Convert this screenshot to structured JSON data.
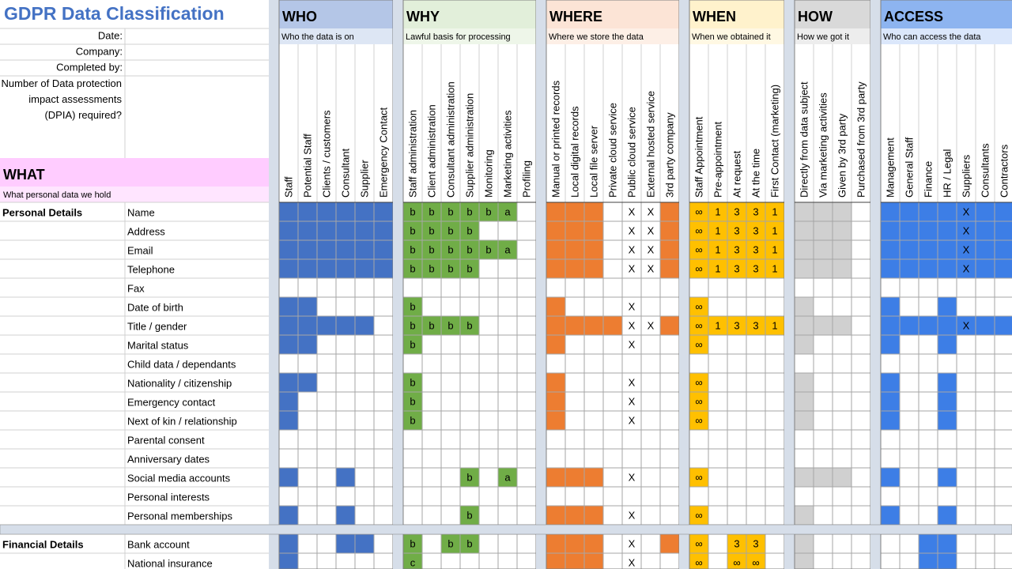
{
  "header": {
    "title": "GDPR Data Classification",
    "fields": [
      "Date:",
      "Company:",
      "Completed by:",
      "Number of Data protection impact assessments (DPIA) required?"
    ]
  },
  "what": {
    "title": "WHAT",
    "subtitle": "What personal data we hold",
    "header_color": "#ffccff",
    "subtitle_color": "#ffe5ff"
  },
  "groups": [
    {
      "name": "Personal Details",
      "items": [
        "Name",
        "Address",
        "Email",
        "Telephone",
        "Fax",
        "Date of birth",
        "Title / gender",
        "Marital status",
        "Child data / dependants",
        "Nationality / citizenship",
        "Emergency contact",
        "Next of kin / relationship",
        "Parental consent",
        "Anniversary dates",
        "Social media accounts",
        "Personal interests",
        "Personal memberships"
      ]
    },
    {
      "name": "Financial Details",
      "items": [
        "Bank account",
        "National insurance"
      ]
    }
  ],
  "sections": [
    {
      "title": "WHO",
      "subtitle": "Who the data is on",
      "header_color": "#b4c6e7",
      "subtitle_color": "#dde6f4",
      "fill": "#4472c4",
      "text_fill": false,
      "columns": [
        "Staff",
        "Potential Staff",
        "Clients / customers",
        "Consultant",
        "Supplier",
        "Emergency Contact"
      ],
      "cells": [
        [
          [
            true,
            true,
            true,
            true,
            true,
            true
          ],
          [
            true,
            true,
            true,
            true,
            true,
            true
          ],
          [
            true,
            true,
            true,
            true,
            true,
            true
          ],
          [
            true,
            true,
            true,
            true,
            true,
            true
          ],
          [
            null,
            null,
            null,
            null,
            null,
            null
          ],
          [
            true,
            true,
            null,
            null,
            null,
            null
          ],
          [
            true,
            true,
            true,
            true,
            true,
            null
          ],
          [
            true,
            true,
            null,
            null,
            null,
            null
          ],
          [
            null,
            null,
            null,
            null,
            null,
            null
          ],
          [
            true,
            true,
            null,
            null,
            null,
            null
          ],
          [
            true,
            null,
            null,
            null,
            null,
            null
          ],
          [
            true,
            null,
            null,
            null,
            null,
            null
          ],
          [
            null,
            null,
            null,
            null,
            null,
            null
          ],
          [
            null,
            null,
            null,
            null,
            null,
            null
          ],
          [
            true,
            null,
            null,
            true,
            null,
            null
          ],
          [
            null,
            null,
            null,
            null,
            null,
            null
          ],
          [
            true,
            null,
            null,
            true,
            null,
            null
          ]
        ],
        [
          [
            true,
            null,
            null,
            true,
            true,
            null
          ],
          [
            true,
            null,
            null,
            null,
            null,
            null
          ]
        ]
      ]
    },
    {
      "title": "WHY",
      "subtitle": "Lawful basis for processing",
      "header_color": "#e2efda",
      "subtitle_color": "#eef6e9",
      "fill": "#70ad47",
      "text_fill": true,
      "columns": [
        "Staff administration",
        "Client administration",
        "Consultant administration",
        "Supplier administration",
        "Monitoring",
        "Marketing activities",
        "Profiling"
      ],
      "cells": [
        [
          [
            "b",
            "b",
            "b",
            "b",
            "b",
            "a",
            null
          ],
          [
            "b",
            "b",
            "b",
            "b",
            null,
            null,
            null
          ],
          [
            "b",
            "b",
            "b",
            "b",
            "b",
            "a",
            null
          ],
          [
            "b",
            "b",
            "b",
            "b",
            null,
            null,
            null
          ],
          [
            null,
            null,
            null,
            null,
            null,
            null,
            null
          ],
          [
            "b",
            null,
            null,
            null,
            null,
            null,
            null
          ],
          [
            "b",
            "b",
            "b",
            "b",
            null,
            null,
            null
          ],
          [
            "b",
            null,
            null,
            null,
            null,
            null,
            null
          ],
          [
            null,
            null,
            null,
            null,
            null,
            null,
            null
          ],
          [
            "b",
            null,
            null,
            null,
            null,
            null,
            null
          ],
          [
            "b",
            null,
            null,
            null,
            null,
            null,
            null
          ],
          [
            "b",
            null,
            null,
            null,
            null,
            null,
            null
          ],
          [
            null,
            null,
            null,
            null,
            null,
            null,
            null
          ],
          [
            null,
            null,
            null,
            null,
            null,
            null,
            null
          ],
          [
            null,
            null,
            null,
            "b",
            null,
            "a",
            null
          ],
          [
            null,
            null,
            null,
            null,
            null,
            null,
            null
          ],
          [
            null,
            null,
            null,
            "b",
            null,
            null,
            null
          ]
        ],
        [
          [
            "b",
            null,
            "b",
            "b",
            null,
            null,
            null
          ],
          [
            "c",
            null,
            null,
            null,
            null,
            null,
            null
          ]
        ]
      ]
    },
    {
      "title": "WHERE",
      "subtitle": "Where we store the data",
      "header_color": "#fce4d6",
      "subtitle_color": "#fdefe6",
      "fill": "#ed7d31",
      "text_fill": false,
      "columns": [
        "Manual or printed records",
        "Local digital records",
        "Local file server",
        "Private cloud service",
        "Public cloud service",
        "External hosted service",
        "3rd party company"
      ],
      "cells": [
        [
          [
            true,
            true,
            true,
            null,
            "X",
            "X",
            true
          ],
          [
            true,
            true,
            true,
            null,
            "X",
            "X",
            true
          ],
          [
            true,
            true,
            true,
            null,
            "X",
            "X",
            true
          ],
          [
            true,
            true,
            true,
            null,
            "X",
            "X",
            true
          ],
          [
            null,
            null,
            null,
            null,
            null,
            null,
            null
          ],
          [
            true,
            null,
            null,
            null,
            "X",
            null,
            null
          ],
          [
            true,
            true,
            true,
            true,
            "X",
            "X",
            true
          ],
          [
            true,
            null,
            null,
            null,
            "X",
            null,
            null
          ],
          [
            null,
            null,
            null,
            null,
            null,
            null,
            null
          ],
          [
            true,
            null,
            null,
            null,
            "X",
            null,
            null
          ],
          [
            true,
            null,
            null,
            null,
            "X",
            null,
            null
          ],
          [
            true,
            null,
            null,
            null,
            "X",
            null,
            null
          ],
          [
            null,
            null,
            null,
            null,
            null,
            null,
            null
          ],
          [
            null,
            null,
            null,
            null,
            null,
            null,
            null
          ],
          [
            true,
            true,
            true,
            null,
            "X",
            null,
            null
          ],
          [
            null,
            null,
            null,
            null,
            null,
            null,
            null
          ],
          [
            true,
            true,
            true,
            null,
            "X",
            null,
            null
          ]
        ],
        [
          [
            true,
            true,
            true,
            null,
            "X",
            null,
            true
          ],
          [
            true,
            true,
            true,
            null,
            "X",
            null,
            null
          ]
        ]
      ]
    },
    {
      "title": "WHEN",
      "subtitle": "When we obtained it",
      "header_color": "#fff2cc",
      "subtitle_color": "#fff8e3",
      "fill": "#ffc000",
      "text_fill": true,
      "columns": [
        "Staff Appointment",
        "Pre-appointment",
        "At request",
        "At the time",
        "First Contact (marketing)"
      ],
      "cells": [
        [
          [
            "∞",
            "1",
            "3",
            "3",
            "1"
          ],
          [
            "∞",
            "1",
            "3",
            "3",
            "1"
          ],
          [
            "∞",
            "1",
            "3",
            "3",
            "1"
          ],
          [
            "∞",
            "1",
            "3",
            "3",
            "1"
          ],
          [
            null,
            null,
            null,
            null,
            null
          ],
          [
            "∞",
            null,
            null,
            null,
            null
          ],
          [
            "∞",
            "1",
            "3",
            "3",
            "1"
          ],
          [
            "∞",
            null,
            null,
            null,
            null
          ],
          [
            null,
            null,
            null,
            null,
            null
          ],
          [
            "∞",
            null,
            null,
            null,
            null
          ],
          [
            "∞",
            null,
            null,
            null,
            null
          ],
          [
            "∞",
            null,
            null,
            null,
            null
          ],
          [
            null,
            null,
            null,
            null,
            null
          ],
          [
            null,
            null,
            null,
            null,
            null
          ],
          [
            "∞",
            null,
            null,
            null,
            null
          ],
          [
            null,
            null,
            null,
            null,
            null
          ],
          [
            "∞",
            null,
            null,
            null,
            null
          ]
        ],
        [
          [
            "∞",
            null,
            "3",
            "3",
            null
          ],
          [
            "∞",
            null,
            "∞",
            "∞",
            null
          ]
        ]
      ]
    },
    {
      "title": "HOW",
      "subtitle": "How we got it",
      "header_color": "#d9d9d9",
      "subtitle_color": "#ededed",
      "fill": "#d0d0d0",
      "text_fill": true,
      "columns": [
        "Directly from data subject",
        "Via marketing activities",
        "Given by 3rd party",
        "Purchased from 3rd party"
      ],
      "cells": [
        [
          [
            true,
            true,
            true,
            null
          ],
          [
            true,
            true,
            true,
            null
          ],
          [
            true,
            true,
            true,
            null
          ],
          [
            true,
            true,
            true,
            null
          ],
          [
            null,
            null,
            null,
            null
          ],
          [
            true,
            null,
            null,
            null
          ],
          [
            true,
            true,
            true,
            null
          ],
          [
            true,
            null,
            null,
            null
          ],
          [
            null,
            null,
            null,
            null
          ],
          [
            true,
            null,
            null,
            null
          ],
          [
            true,
            null,
            null,
            null
          ],
          [
            true,
            null,
            null,
            null
          ],
          [
            null,
            null,
            null,
            null
          ],
          [
            null,
            null,
            null,
            null
          ],
          [
            true,
            true,
            true,
            null
          ],
          [
            null,
            null,
            null,
            null
          ],
          [
            true,
            null,
            null,
            null
          ]
        ],
        [
          [
            true,
            null,
            null,
            null
          ],
          [
            true,
            null,
            null,
            null
          ]
        ]
      ]
    },
    {
      "title": "ACCESS",
      "subtitle": "Who can access the data",
      "header_color": "#8db4f0",
      "subtitle_color": "#dbe7fb",
      "fill": "#3d7ee6",
      "text_fill": true,
      "columns": [
        "Management",
        "General Staff",
        "Finance",
        "HR / Legal",
        "Suppliers",
        "Consultants",
        "Contractors"
      ],
      "cells": [
        [
          [
            true,
            true,
            true,
            true,
            "X",
            true,
            true
          ],
          [
            true,
            true,
            true,
            true,
            "X",
            true,
            true
          ],
          [
            true,
            true,
            true,
            true,
            "X",
            true,
            true
          ],
          [
            true,
            true,
            true,
            true,
            "X",
            true,
            true
          ],
          [
            null,
            null,
            null,
            null,
            null,
            null,
            null
          ],
          [
            true,
            null,
            null,
            true,
            null,
            null,
            null
          ],
          [
            true,
            true,
            true,
            true,
            "X",
            true,
            true
          ],
          [
            true,
            null,
            null,
            true,
            null,
            null,
            null
          ],
          [
            null,
            null,
            null,
            null,
            null,
            null,
            null
          ],
          [
            true,
            null,
            null,
            true,
            null,
            null,
            null
          ],
          [
            true,
            null,
            null,
            true,
            null,
            null,
            null
          ],
          [
            true,
            null,
            null,
            true,
            null,
            null,
            null
          ],
          [
            null,
            null,
            null,
            null,
            null,
            null,
            null
          ],
          [
            null,
            null,
            null,
            null,
            null,
            null,
            null
          ],
          [
            true,
            null,
            null,
            true,
            null,
            null,
            null
          ],
          [
            null,
            null,
            null,
            null,
            null,
            null,
            null
          ],
          [
            true,
            null,
            null,
            true,
            null,
            null,
            null
          ]
        ],
        [
          [
            null,
            null,
            true,
            true,
            null,
            null,
            null
          ],
          [
            null,
            null,
            true,
            true,
            null,
            null,
            null
          ]
        ]
      ]
    }
  ]
}
